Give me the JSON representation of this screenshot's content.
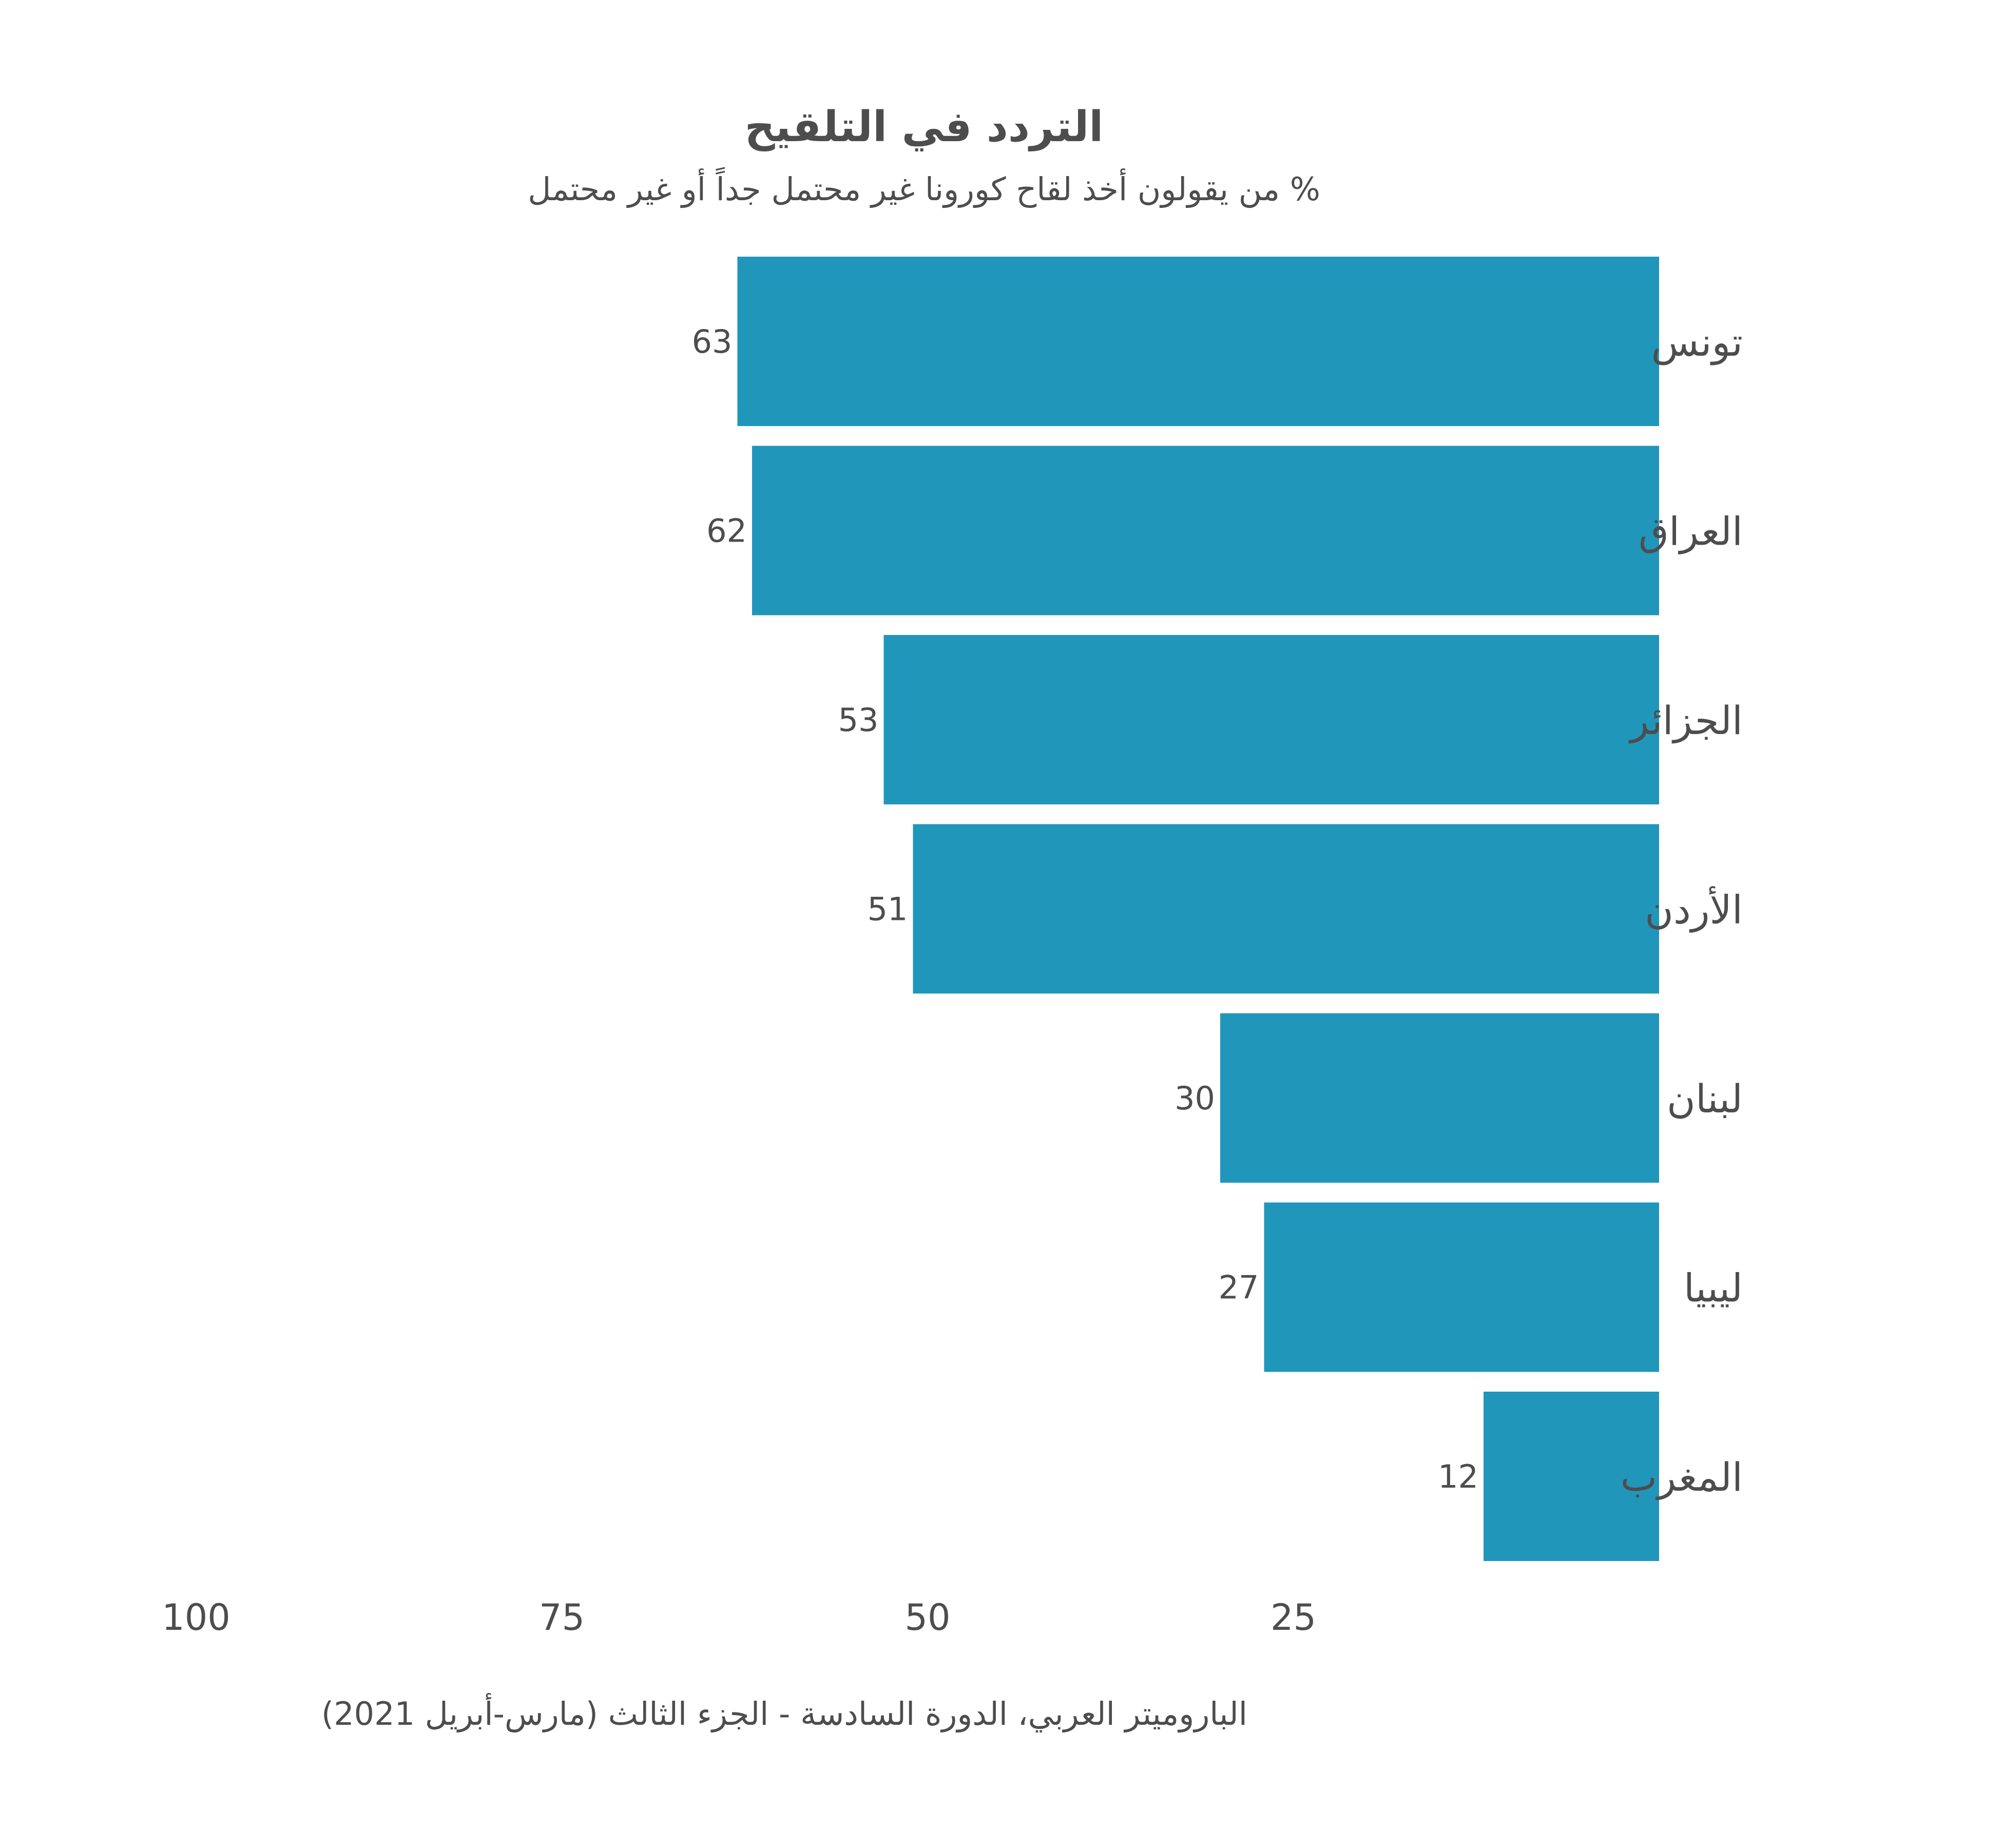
{
  "chart_data": {
    "type": "bar",
    "orientation": "horizontal",
    "direction": "right-to-left",
    "title": "التردد في التلقيح",
    "subtitle": "% من يقولون أخذ لقاح كورونا غير محتمل جداً أو غير محتمل",
    "categories": [
      "تونس",
      "العراق",
      "الجزائر",
      "الأردن",
      "لبنان",
      "ليبيا",
      "المغرب"
    ],
    "values": [
      63,
      62,
      53,
      51,
      30,
      27,
      12
    ],
    "data_labels": [
      "63",
      "62",
      "53",
      "51",
      "30",
      "27",
      "12"
    ],
    "x_ticks": [
      "100",
      "75",
      "50",
      "25"
    ],
    "x_tick_values": [
      100,
      75,
      50,
      25
    ],
    "xlim": [
      0,
      100
    ],
    "grid": false,
    "bar_color": "#2196bb",
    "source": "الباروميتر العربي، الدورة السادسة - الجزء الثالث (مارس-أبريل 2021)"
  }
}
